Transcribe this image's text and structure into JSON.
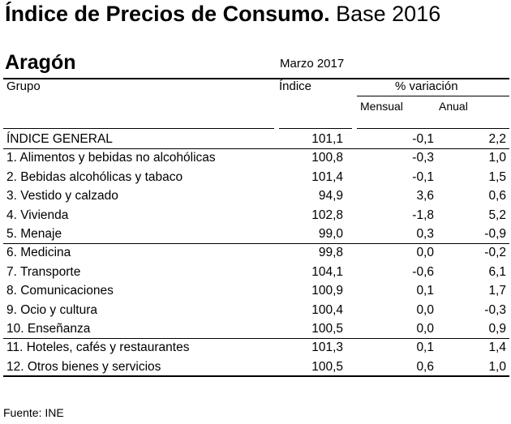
{
  "title": {
    "bold": "Índice de Precios de Consumo.",
    "normal": "Base 2016"
  },
  "region": "Aragón",
  "period": "Marzo 2017",
  "headers": {
    "group": "Grupo",
    "index": "Índice",
    "variation": "% variación",
    "monthly": "Mensual",
    "annual": "Anual"
  },
  "rows": [
    {
      "name": "ÍNDICE GENERAL",
      "index": "101,1",
      "monthly": "-0,1",
      "annual": "2,2"
    },
    {
      "name": "1. Alimentos y bebidas no alcohólicas",
      "index": "100,8",
      "monthly": "-0,3",
      "annual": "1,0"
    },
    {
      "name": "2. Bebidas alcohólicas y tabaco",
      "index": "101,4",
      "monthly": "-0,1",
      "annual": "1,5"
    },
    {
      "name": "3. Vestido y calzado",
      "index": "94,9",
      "monthly": "3,6",
      "annual": "0,6"
    },
    {
      "name": "4. Vivienda",
      "index": "102,8",
      "monthly": "-1,8",
      "annual": "5,2"
    },
    {
      "name": "5. Menaje",
      "index": "99,0",
      "monthly": "0,3",
      "annual": "-0,9"
    },
    {
      "name": "6. Medicina",
      "index": "99,8",
      "monthly": "0,0",
      "annual": "-0,2"
    },
    {
      "name": "7. Transporte",
      "index": "104,1",
      "monthly": "-0,6",
      "annual": "6,1"
    },
    {
      "name": "8. Comunicaciones",
      "index": "100,9",
      "monthly": "0,1",
      "annual": "1,7"
    },
    {
      "name": "9. Ocio y cultura",
      "index": "100,4",
      "monthly": "0,0",
      "annual": "-0,3"
    },
    {
      "name": "10. Enseñanza",
      "index": "100,5",
      "monthly": "0,0",
      "annual": "0,9"
    },
    {
      "name": "11. Hoteles, cafés y restaurantes",
      "index": "101,3",
      "monthly": "0,1",
      "annual": "1,4"
    },
    {
      "name": "12. Otros bienes y servicios",
      "index": "100,5",
      "monthly": "0,6",
      "annual": "1,0"
    }
  ],
  "footer": "Fuente: INE"
}
